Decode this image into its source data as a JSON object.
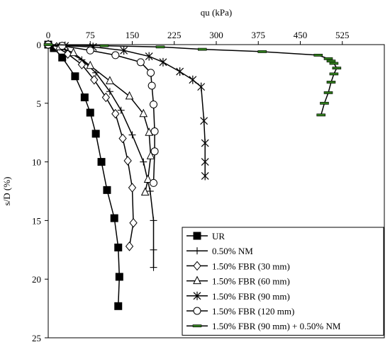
{
  "chart_data": {
    "type": "line",
    "xlabel": "qu (kPa)",
    "ylabel": "s/D (%)",
    "x_axis_position": "top",
    "y_axis_inverted": true,
    "xlim": [
      0,
      600
    ],
    "ylim": [
      0,
      25
    ],
    "x_ticks": [
      0,
      75,
      150,
      225,
      300,
      375,
      450,
      525
    ],
    "y_ticks": [
      0,
      5,
      10,
      15,
      20,
      25
    ],
    "x_tick_labels": [
      "0",
      "75",
      "150",
      "225",
      "300",
      "375",
      "450",
      "525"
    ],
    "y_tick_labels": [
      "0",
      "5",
      "10",
      "15",
      "20",
      "25"
    ],
    "grid": false,
    "legend_position": "bottom-right",
    "series": [
      {
        "name": "UR",
        "marker": "filled-square",
        "color": "#000000",
        "points": [
          [
            0,
            0
          ],
          [
            10,
            0.3
          ],
          [
            25,
            1.1
          ],
          [
            48,
            2.7
          ],
          [
            65,
            4.5
          ],
          [
            75,
            5.8
          ],
          [
            85,
            7.6
          ],
          [
            95,
            10.0
          ],
          [
            105,
            12.4
          ],
          [
            118,
            14.8
          ],
          [
            125,
            17.3
          ],
          [
            127,
            19.8
          ],
          [
            125,
            22.3
          ]
        ]
      },
      {
        "name": "0.50% NM",
        "marker": "plus",
        "color": "#000000",
        "points": [
          [
            0,
            0
          ],
          [
            20,
            0.2
          ],
          [
            35,
            0.6
          ],
          [
            60,
            1.3
          ],
          [
            85,
            2.4
          ],
          [
            110,
            4.0
          ],
          [
            130,
            5.6
          ],
          [
            150,
            7.7
          ],
          [
            170,
            10.0
          ],
          [
            182,
            12.5
          ],
          [
            188,
            15.0
          ],
          [
            188,
            17.5
          ],
          [
            188,
            19.0
          ]
        ]
      },
      {
        "name": "1.50% FBR (30 mm)",
        "marker": "open-diamond",
        "color": "#000000",
        "points": [
          [
            0,
            0
          ],
          [
            15,
            0.2
          ],
          [
            35,
            0.8
          ],
          [
            60,
            1.7
          ],
          [
            82,
            3.0
          ],
          [
            103,
            4.5
          ],
          [
            120,
            5.9
          ],
          [
            133,
            8.0
          ],
          [
            142,
            9.9
          ],
          [
            150,
            12.2
          ],
          [
            152,
            15.2
          ],
          [
            145,
            17.2
          ]
        ]
      },
      {
        "name": "1.50% FBR (60 mm)",
        "marker": "open-triangle",
        "color": "#000000",
        "points": [
          [
            0,
            0
          ],
          [
            20,
            0.2
          ],
          [
            45,
            0.7
          ],
          [
            75,
            1.8
          ],
          [
            110,
            3.1
          ],
          [
            145,
            4.4
          ],
          [
            170,
            5.9
          ],
          [
            180,
            7.5
          ],
          [
            183,
            9.5
          ],
          [
            178,
            11.5
          ],
          [
            173,
            12.6
          ]
        ]
      },
      {
        "name": "1.50% FBR (90 mm)",
        "marker": "asterisk",
        "color": "#000000",
        "points": [
          [
            0,
            0
          ],
          [
            30,
            0.1
          ],
          [
            80,
            0.2
          ],
          [
            135,
            0.5
          ],
          [
            180,
            1.0
          ],
          [
            205,
            1.5
          ],
          [
            235,
            2.3
          ],
          [
            258,
            3.0
          ],
          [
            273,
            3.6
          ],
          [
            278,
            6.5
          ],
          [
            280,
            8.4
          ],
          [
            280,
            10.0
          ],
          [
            280,
            11.2
          ]
        ]
      },
      {
        "name": "1.50% FBR (120 mm)",
        "marker": "open-circle",
        "color": "#000000",
        "points": [
          [
            0,
            0
          ],
          [
            25,
            0.1
          ],
          [
            75,
            0.5
          ],
          [
            120,
            0.9
          ],
          [
            165,
            1.5
          ],
          [
            183,
            2.4
          ],
          [
            185,
            3.5
          ],
          [
            188,
            5.1
          ],
          [
            190,
            7.4
          ],
          [
            190,
            9.1
          ],
          [
            188,
            11.8
          ]
        ]
      },
      {
        "name": "1.50% FBR (90 mm) + 0.50% NM",
        "marker": "green-dash",
        "color": "#000000",
        "marker_color": "#2f7a1c",
        "points": [
          [
            0,
            0
          ],
          [
            100,
            0.1
          ],
          [
            200,
            0.2
          ],
          [
            275,
            0.4
          ],
          [
            382,
            0.6
          ],
          [
            482,
            0.9
          ],
          [
            500,
            1.2
          ],
          [
            505,
            1.4
          ],
          [
            510,
            1.6
          ],
          [
            515,
            2.0
          ],
          [
            510,
            2.5
          ],
          [
            505,
            3.2
          ],
          [
            500,
            4.1
          ],
          [
            493,
            5.0
          ],
          [
            487,
            6.0
          ]
        ]
      }
    ]
  }
}
